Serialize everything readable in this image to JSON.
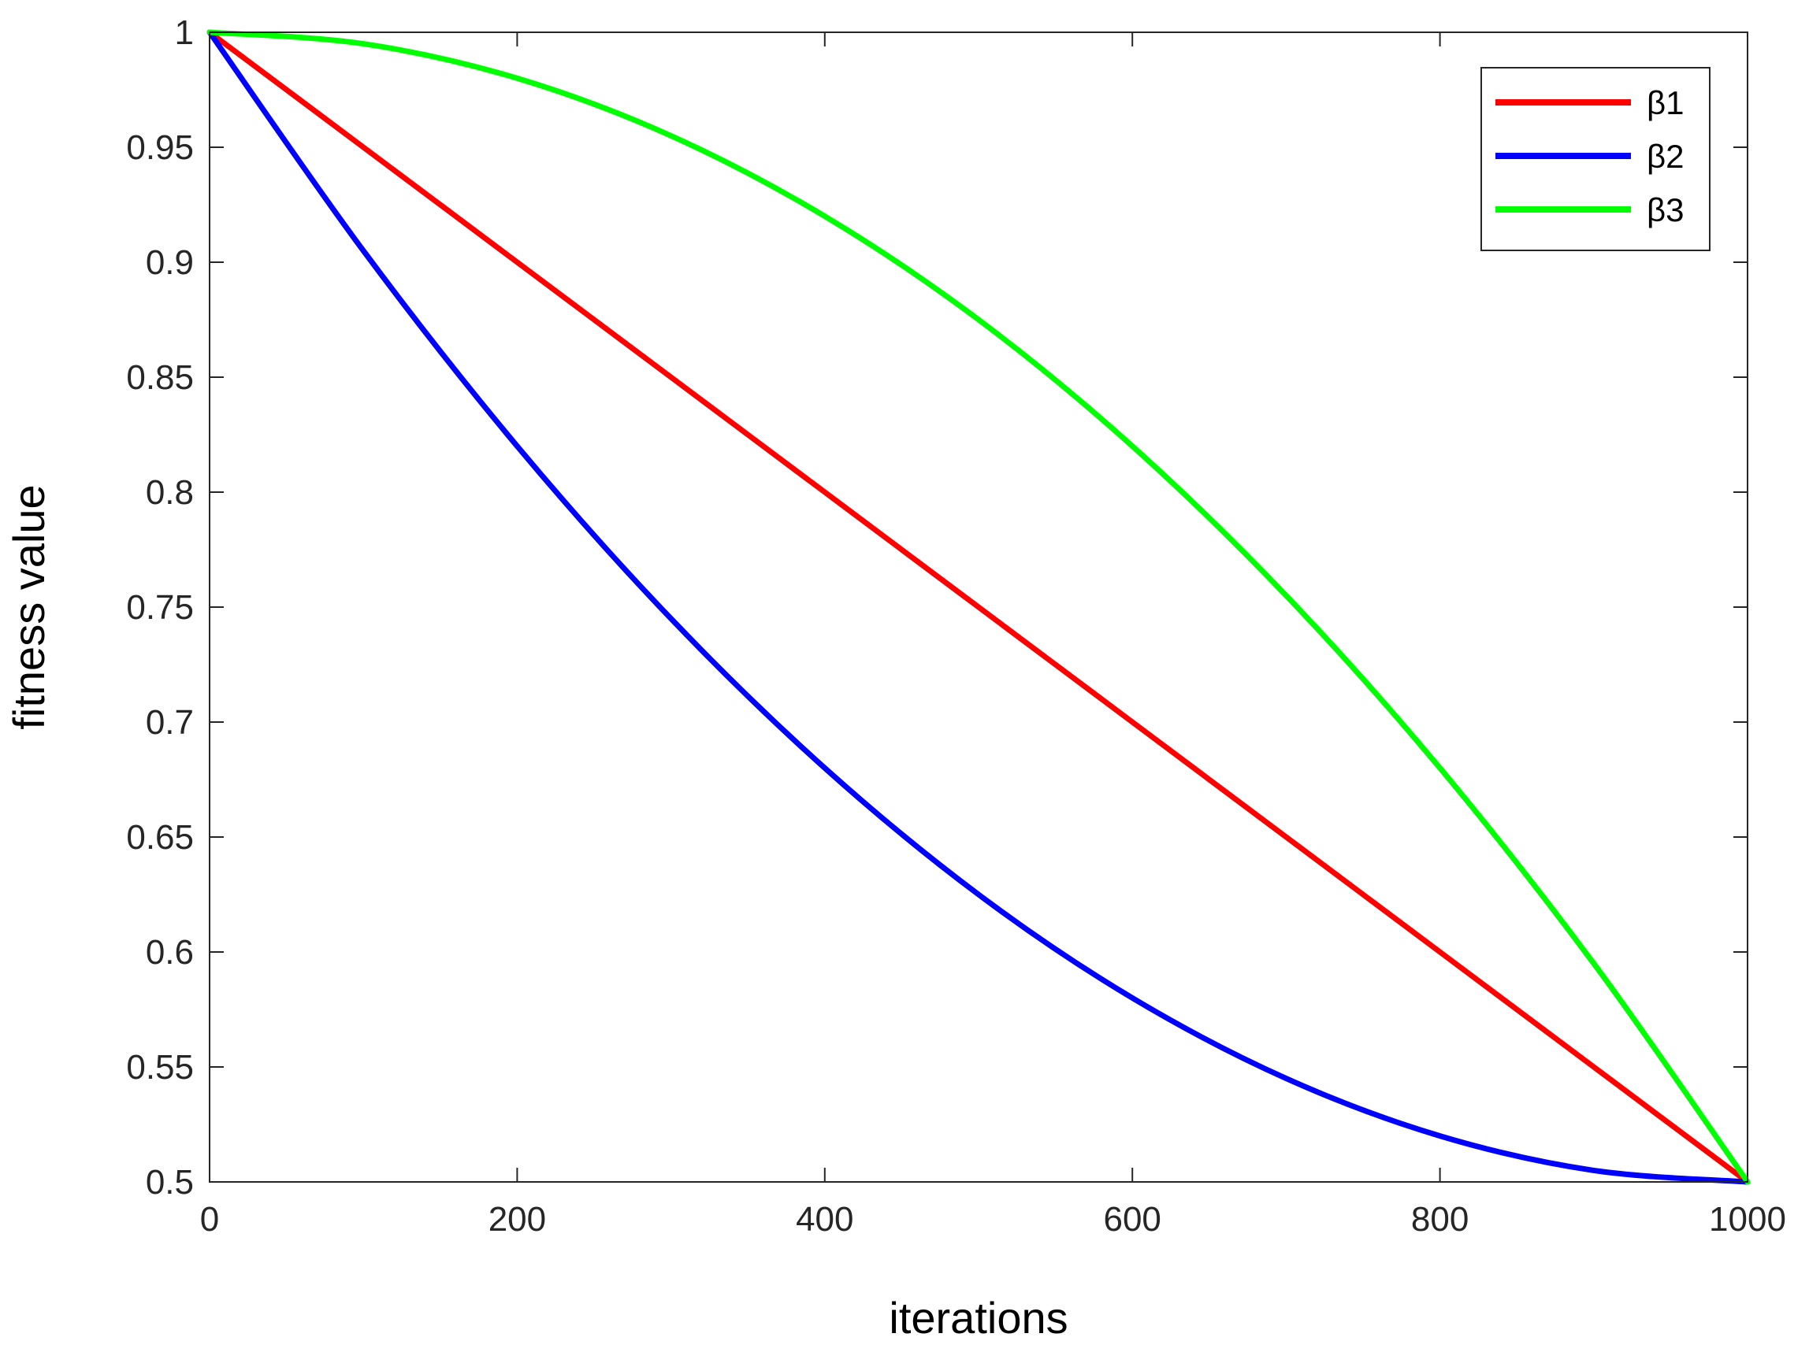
{
  "chart_data": {
    "type": "line",
    "title": "",
    "xlabel": "iterations",
    "ylabel": "fitness value",
    "xlim": [
      0,
      1000
    ],
    "ylim": [
      0.5,
      1
    ],
    "xticks": [
      0,
      200,
      400,
      600,
      800,
      1000
    ],
    "xtick_labels": [
      "0",
      "200",
      "400",
      "600",
      "800",
      "1000"
    ],
    "yticks": [
      0.5,
      0.55,
      0.6,
      0.65,
      0.7,
      0.75,
      0.8,
      0.85,
      0.9,
      0.95,
      1
    ],
    "ytick_labels": [
      "0.5",
      "0.55",
      "0.6",
      "0.65",
      "0.7",
      "0.75",
      "0.8",
      "0.85",
      "0.9",
      "0.95",
      "1"
    ],
    "grid": false,
    "legend_position": "top-right",
    "x": [
      0,
      100,
      200,
      300,
      400,
      500,
      600,
      700,
      800,
      900,
      1000
    ],
    "series": [
      {
        "name": "β1",
        "color": "#ff0000",
        "values": [
          1,
          0.95,
          0.9,
          0.85,
          0.8,
          0.75,
          0.7,
          0.65,
          0.6,
          0.55,
          0.5
        ]
      },
      {
        "name": "β2",
        "color": "#0000ff",
        "values": [
          1,
          0.905,
          0.82,
          0.745,
          0.68,
          0.625,
          0.58,
          0.545,
          0.52,
          0.505,
          0.5
        ]
      },
      {
        "name": "β3",
        "color": "#00ff00",
        "values": [
          1,
          0.995,
          0.98,
          0.955,
          0.92,
          0.875,
          0.82,
          0.755,
          0.68,
          0.595,
          0.5
        ]
      }
    ]
  }
}
